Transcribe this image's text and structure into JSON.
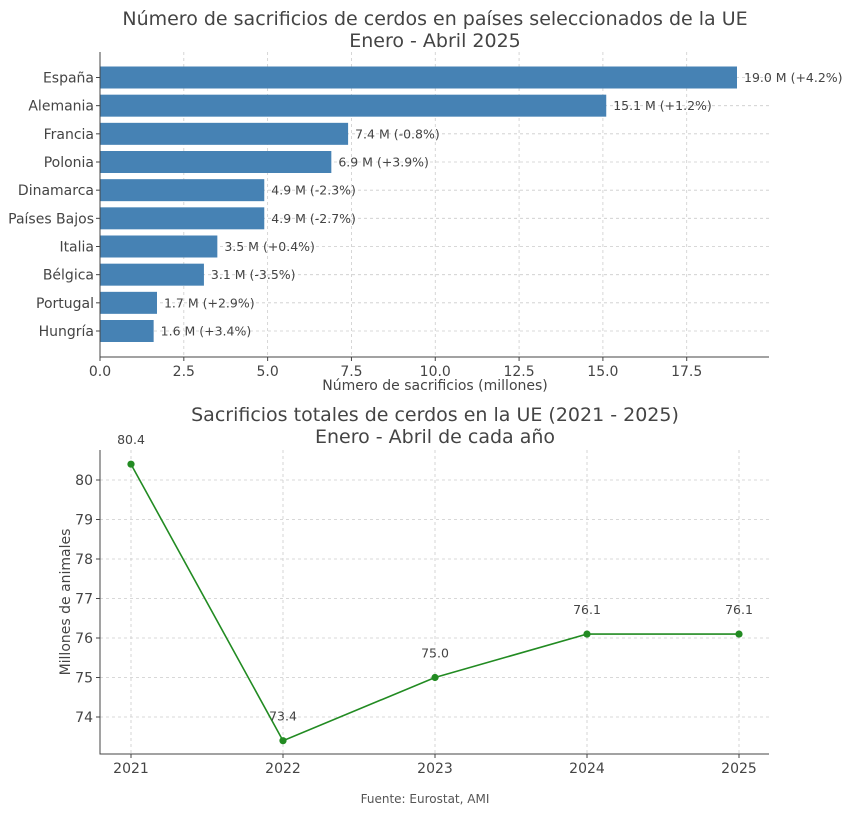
{
  "chart_data": [
    {
      "type": "bar",
      "orientation": "horizontal",
      "title_line1": "Número de sacrificios de cerdos en países seleccionados de la UE",
      "title_line2": "Enero - Abril 2025",
      "xlabel": "Número de sacrificios (millones)",
      "ylabel": "",
      "xlim": [
        0,
        20
      ],
      "xticks": [
        "0.0",
        "2.5",
        "5.0",
        "7.5",
        "10.0",
        "12.5",
        "15.0",
        "17.5"
      ],
      "grid": true,
      "color": "#4682b4",
      "categories": [
        "España",
        "Alemania",
        "Francia",
        "Polonia",
        "Dinamarca",
        "Países Bajos",
        "Italia",
        "Bélgica",
        "Portugal",
        "Hungría"
      ],
      "values": [
        19.0,
        15.1,
        7.4,
        6.9,
        4.9,
        4.9,
        3.5,
        3.1,
        1.7,
        1.6
      ],
      "labels": [
        "19.0 M  (+4.2%)",
        "15.1 M  (+1.2%)",
        "7.4 M  (-0.8%)",
        "6.9 M  (+3.9%)",
        "4.9 M  (-2.3%)",
        "4.9 M  (-2.7%)",
        "3.5 M  (+0.4%)",
        "3.1 M  (-3.5%)",
        "1.7 M  (+2.9%)",
        "1.6 M  (+3.4%)"
      ]
    },
    {
      "type": "line",
      "title_line1": "Sacrificios totales de cerdos en la UE (2021 - 2025)",
      "title_line2": "Enero - Abril de cada año",
      "xlabel": "",
      "ylabel": "Millones de animales",
      "ylim": [
        73.2,
        80.8
      ],
      "yticks": [
        "74",
        "75",
        "76",
        "77",
        "78",
        "79",
        "80"
      ],
      "grid": true,
      "color": "#228b22",
      "x": [
        "2021",
        "2022",
        "2023",
        "2024",
        "2025"
      ],
      "values": [
        80.4,
        73.4,
        75.0,
        76.1,
        76.1
      ],
      "labels": [
        "80.4",
        "73.4",
        "75.0",
        "76.1",
        "76.1"
      ]
    }
  ],
  "source": "Fuente: Eurostat, AMI"
}
